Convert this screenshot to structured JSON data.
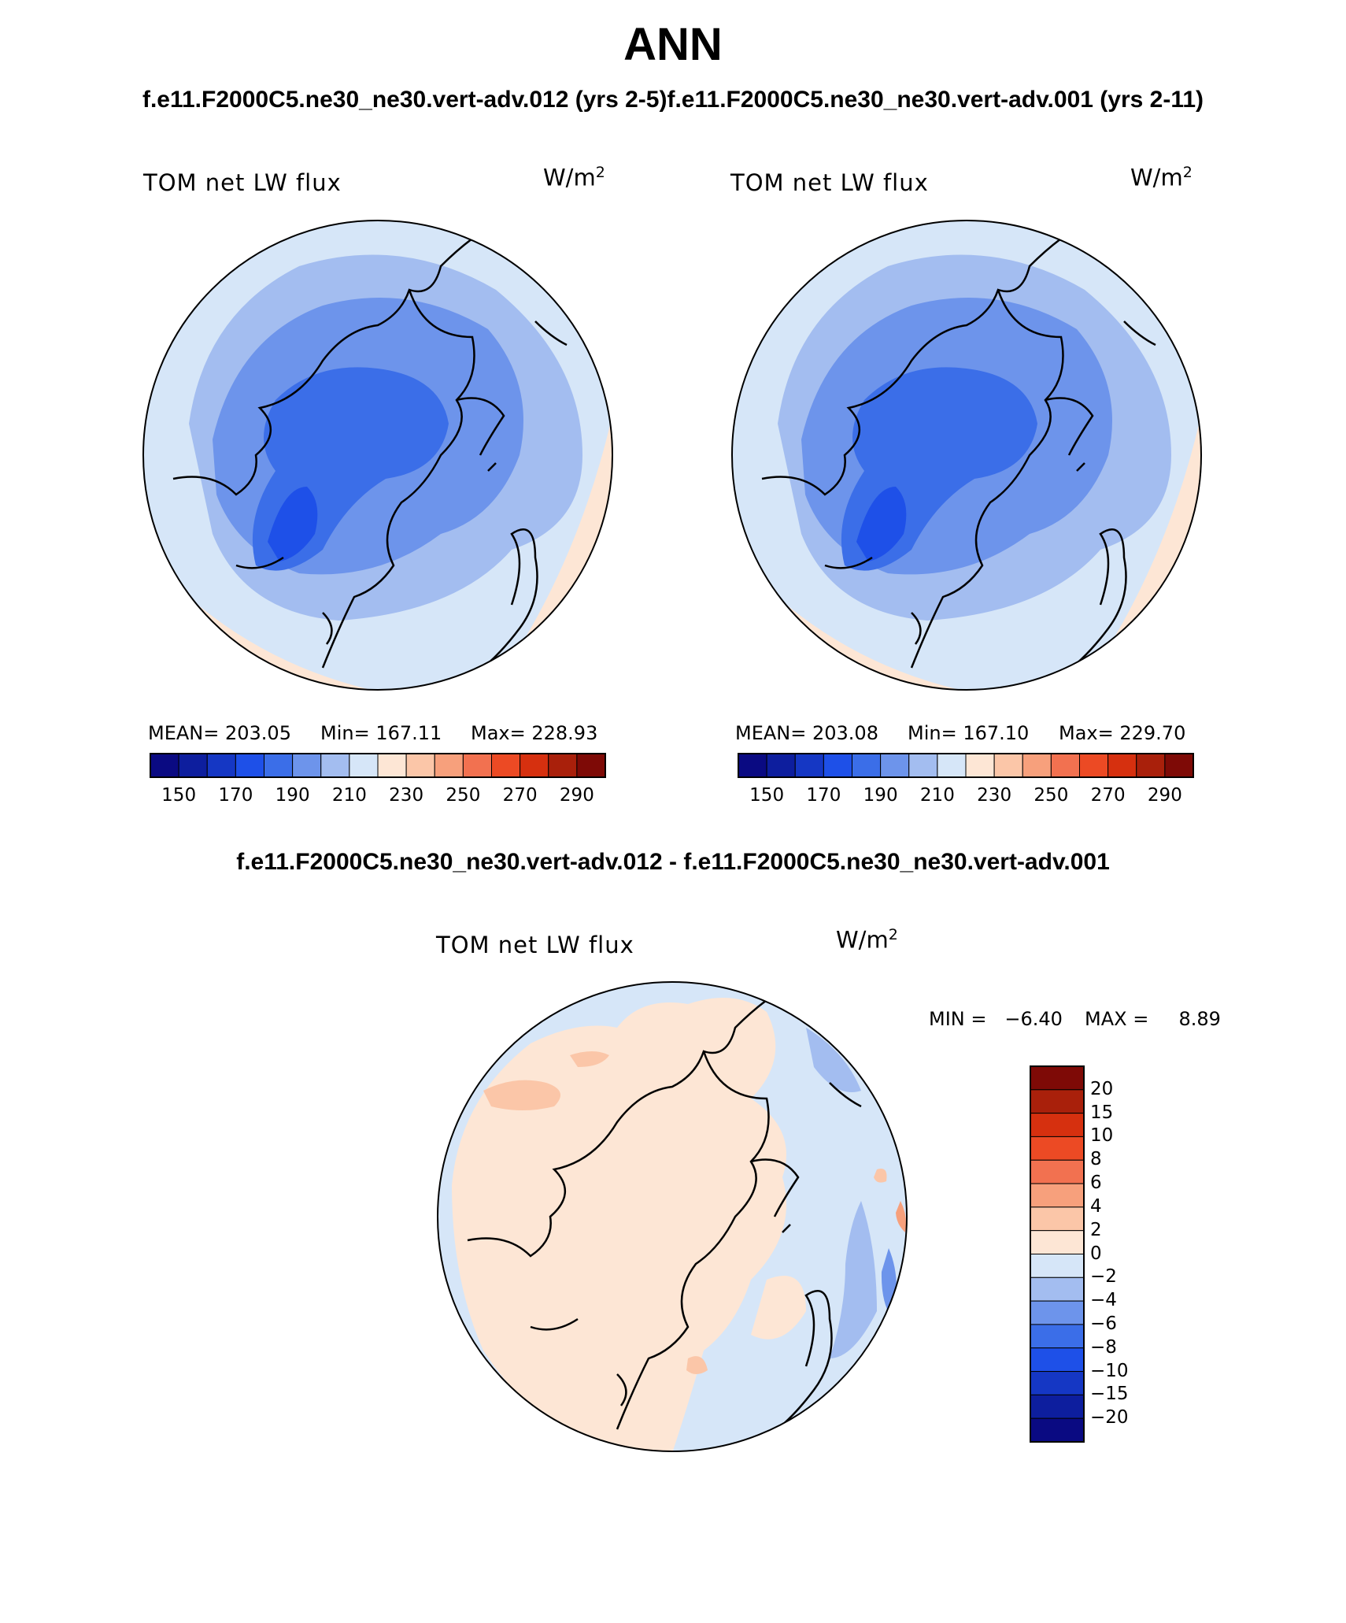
{
  "figure": {
    "title": "ANN",
    "subtitle": "f.e11.F2000C5.ne30_ne30.vert-adv.012 (yrs 2-5)f.e11.F2000C5.ne30_ne30.vert-adv.001 (yrs 2-11)",
    "difference_title": "f.e11.F2000C5.ne30_ne30.vert-adv.012 - f.e11.F2000C5.ne30_ne30.vert-adv.001"
  },
  "panels": {
    "left": {
      "variable": "TOM net LW flux",
      "unit_base": "W/m",
      "unit_exp": "2",
      "stats_mean": "MEAN= 203.05",
      "stats_min": "Min= 167.11",
      "stats_max": "Max= 228.93"
    },
    "right": {
      "variable": "TOM net LW flux",
      "unit_base": "W/m",
      "unit_exp": "2",
      "stats_mean": "MEAN= 203.08",
      "stats_min": "Min= 167.10",
      "stats_max": "Max= 229.70"
    },
    "diff": {
      "variable": "TOM net LW flux",
      "unit_base": "W/m",
      "unit_exp": "2",
      "stats_min": "MIN =   −6.40",
      "stats_max": "MAX =     8.89"
    }
  },
  "colorbar_abs": {
    "colors": [
      "#0a0a82",
      "#0d1e9e",
      "#1537c4",
      "#1e50e8",
      "#3b6ee8",
      "#6d94eb",
      "#a3bdf0",
      "#d6e6f8",
      "#fde6d5",
      "#fbc6a8",
      "#f7a07c",
      "#f27150",
      "#ec4a24",
      "#d6300f",
      "#a9200b",
      "#7e0a06"
    ],
    "tick_labels": [
      "150",
      "170",
      "190",
      "210",
      "230",
      "250",
      "270",
      "290"
    ]
  },
  "colorbar_diff": {
    "colors": [
      "#7e0a06",
      "#a9200b",
      "#d6300f",
      "#ec4a24",
      "#f27150",
      "#f7a07c",
      "#fbc6a8",
      "#fde6d5",
      "#d6e6f8",
      "#a3bdf0",
      "#6d94eb",
      "#3b6ee8",
      "#1e50e8",
      "#1537c4",
      "#0d1e9e",
      "#0a0a82"
    ],
    "tick_labels": [
      "20",
      "15",
      "10",
      "8",
      "6",
      "4",
      "2",
      "0",
      "−2",
      "−4",
      "−6",
      "−8",
      "−10",
      "−15",
      "−20"
    ]
  },
  "map_colors": {
    "abs_background": "#d6e6f8",
    "abs_level_2": "#a3bdf0",
    "abs_level_3": "#6d94eb",
    "abs_level_4": "#3b6ee8",
    "abs_level_5": "#1e50e8",
    "abs_warm": "#fde6d5",
    "diff_background": "#d6e6f8",
    "diff_pos": "#fde6d5",
    "diff_pos2": "#fbc6a8",
    "diff_pos3": "#f7a07c",
    "diff_neg2": "#a3bdf0",
    "diff_neg3": "#6d94eb"
  }
}
